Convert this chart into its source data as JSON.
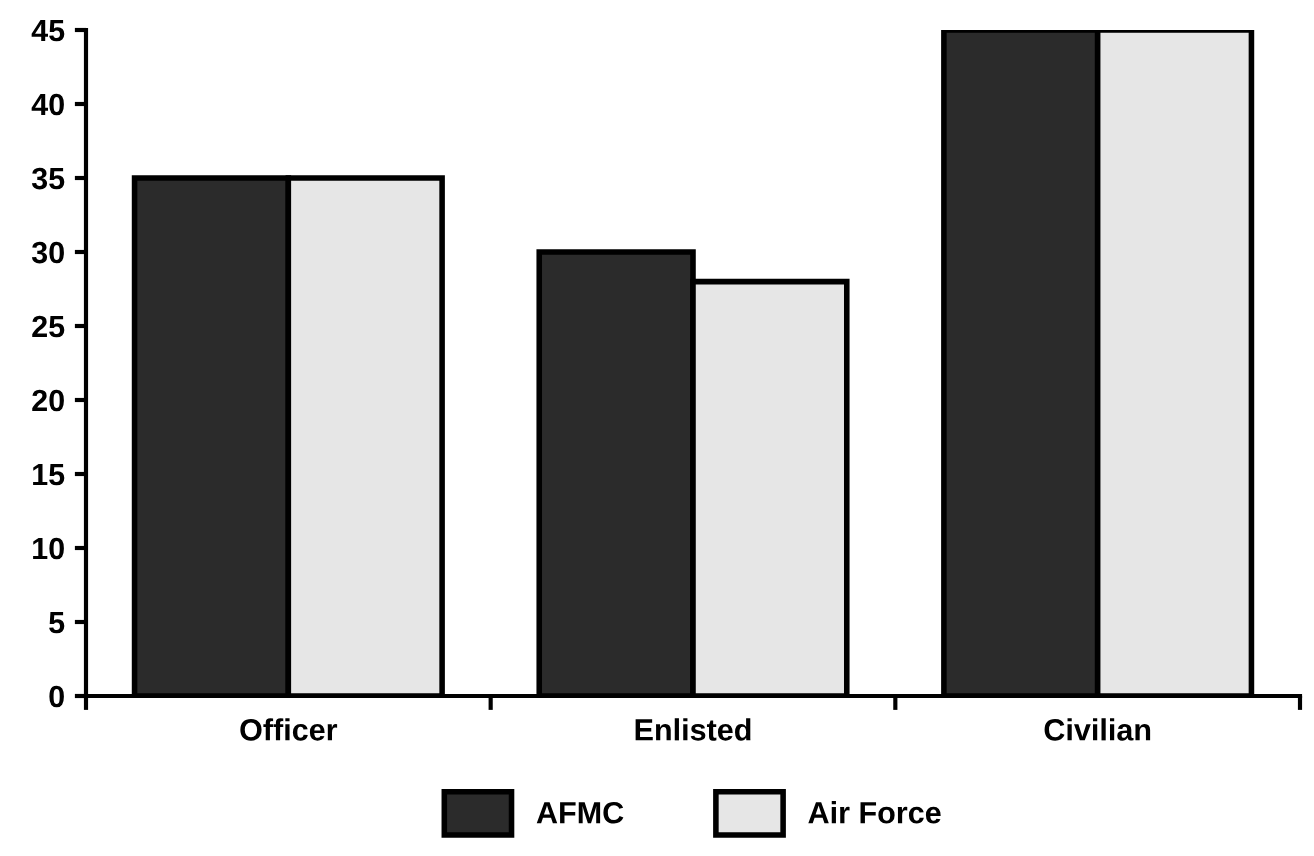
{
  "chart_data": {
    "type": "bar",
    "categories": [
      "Officer",
      "Enlisted",
      "Civilian"
    ],
    "series": [
      {
        "name": "AFMC",
        "color": "#2b2b2b",
        "values": [
          35,
          30,
          45
        ]
      },
      {
        "name": "Air Force",
        "color": "#e6e6e6",
        "values": [
          35,
          28,
          45
        ]
      }
    ],
    "ylim": [
      0,
      45
    ],
    "yticks": [
      0,
      5,
      10,
      15,
      20,
      25,
      30,
      35,
      40,
      45
    ],
    "grid": false,
    "legend": "bottom"
  }
}
